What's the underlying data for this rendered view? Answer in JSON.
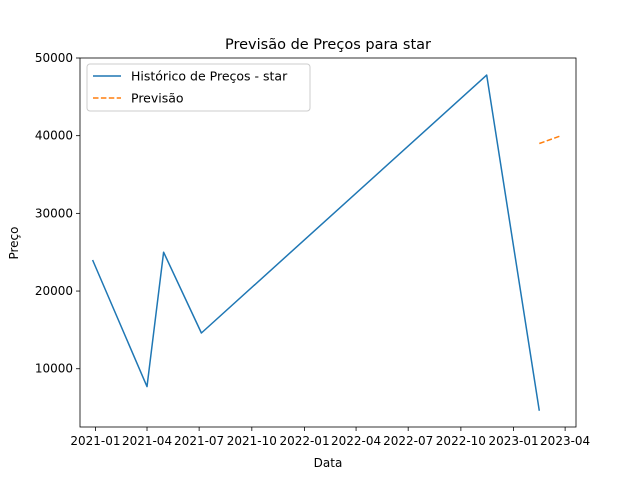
{
  "chart_data": {
    "type": "line",
    "title": "Previsão de Preços para star",
    "xlabel": "Data",
    "ylabel": "Preço",
    "x_ticks": [
      "2021-01",
      "2021-04",
      "2021-07",
      "2021-10",
      "2022-01",
      "2022-04",
      "2022-07",
      "2022-10",
      "2023-01",
      "2023-04"
    ],
    "y_ticks": [
      "10000",
      "20000",
      "30000",
      "40000",
      "50000"
    ],
    "ylim": [
      2500,
      50000
    ],
    "xlim": [
      "2020-12-05",
      "2023-04-20"
    ],
    "legend_position": "top-left",
    "grid": false,
    "series": [
      {
        "name": "Histórico de Preços - star",
        "color": "#1f77b4",
        "line_style": "solid",
        "x": [
          "2020-12-27",
          "2021-04-01",
          "2021-04-30",
          "2021-07-05",
          "2022-11-15",
          "2023-02-15"
        ],
        "y": [
          24000,
          7700,
          25000,
          14600,
          47800,
          4600
        ]
      },
      {
        "name": "Previsão",
        "color": "#ff7f0e",
        "line_style": "dashed",
        "x": [
          "2023-02-15",
          "2023-03-25"
        ],
        "y": [
          39000,
          40000
        ]
      }
    ]
  }
}
